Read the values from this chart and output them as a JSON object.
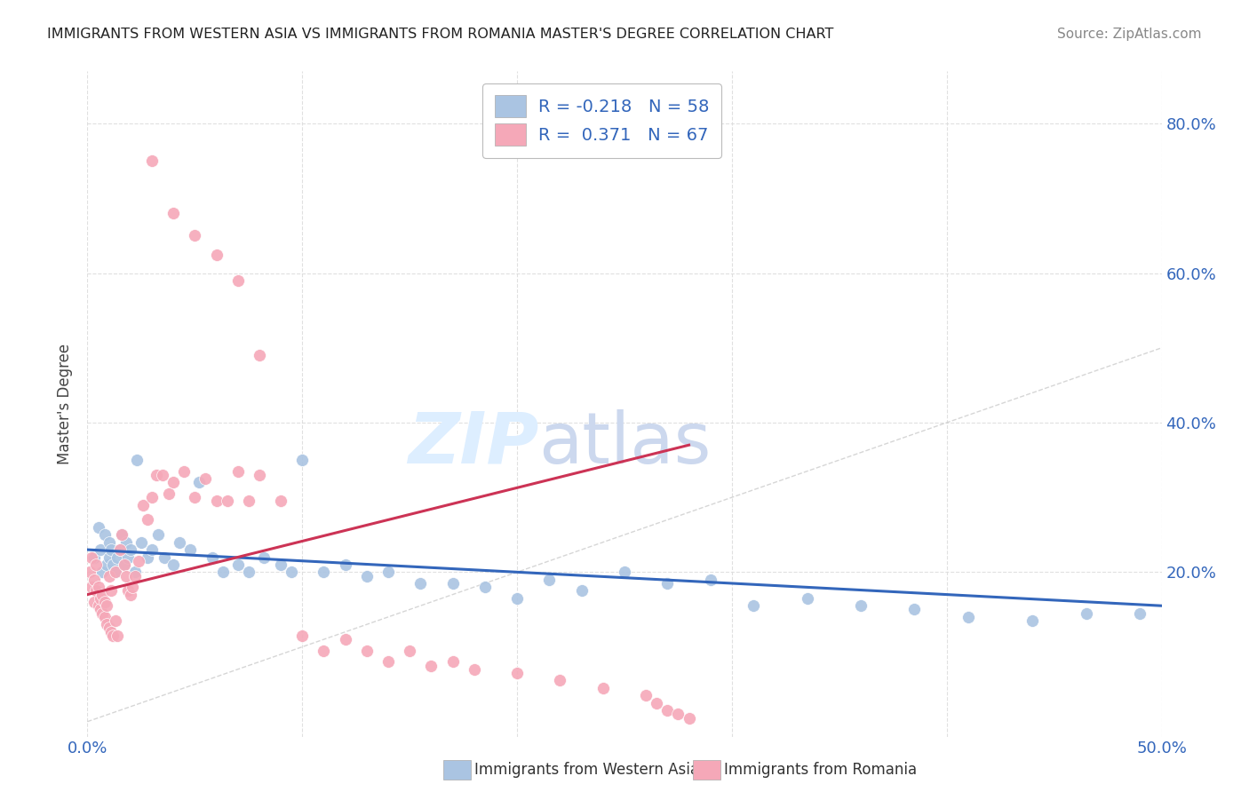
{
  "title": "IMMIGRANTS FROM WESTERN ASIA VS IMMIGRANTS FROM ROMANIA MASTER'S DEGREE CORRELATION CHART",
  "source": "Source: ZipAtlas.com",
  "ylabel": "Master's Degree",
  "yticks_labels": [
    "20.0%",
    "40.0%",
    "60.0%",
    "80.0%"
  ],
  "ytick_vals": [
    0.2,
    0.4,
    0.6,
    0.8
  ],
  "xlim": [
    0.0,
    0.5
  ],
  "ylim": [
    -0.02,
    0.87
  ],
  "blue_color": "#aac4e2",
  "pink_color": "#f5a8b8",
  "trendline_blue_color": "#3366bb",
  "trendline_pink_color": "#cc3355",
  "diagonal_color": "#cccccc",
  "legend_text_color": "#3366bb",
  "title_color": "#222222",
  "source_color": "#888888",
  "ylabel_color": "#444444",
  "xtick_color": "#3366bb",
  "ytick_color": "#3366bb",
  "watermark_zip_color": "#ddeeff",
  "watermark_atlas_color": "#ccd8ee",
  "blue_x": [
    0.003,
    0.005,
    0.006,
    0.007,
    0.008,
    0.009,
    0.01,
    0.01,
    0.011,
    0.012,
    0.013,
    0.014,
    0.015,
    0.016,
    0.017,
    0.018,
    0.019,
    0.02,
    0.022,
    0.023,
    0.025,
    0.028,
    0.03,
    0.033,
    0.036,
    0.04,
    0.043,
    0.048,
    0.052,
    0.058,
    0.063,
    0.07,
    0.075,
    0.082,
    0.09,
    0.095,
    0.1,
    0.11,
    0.12,
    0.13,
    0.14,
    0.155,
    0.17,
    0.185,
    0.2,
    0.215,
    0.23,
    0.25,
    0.27,
    0.29,
    0.31,
    0.335,
    0.36,
    0.385,
    0.41,
    0.44,
    0.465,
    0.49
  ],
  "blue_y": [
    0.22,
    0.26,
    0.23,
    0.2,
    0.25,
    0.21,
    0.24,
    0.22,
    0.23,
    0.21,
    0.2,
    0.22,
    0.23,
    0.25,
    0.21,
    0.24,
    0.22,
    0.23,
    0.2,
    0.35,
    0.24,
    0.22,
    0.23,
    0.25,
    0.22,
    0.21,
    0.24,
    0.23,
    0.32,
    0.22,
    0.2,
    0.21,
    0.2,
    0.22,
    0.21,
    0.2,
    0.35,
    0.2,
    0.21,
    0.195,
    0.2,
    0.185,
    0.185,
    0.18,
    0.165,
    0.19,
    0.175,
    0.2,
    0.185,
    0.19,
    0.155,
    0.165,
    0.155,
    0.15,
    0.14,
    0.135,
    0.145,
    0.145
  ],
  "pink_x": [
    0.001,
    0.002,
    0.002,
    0.003,
    0.003,
    0.004,
    0.004,
    0.005,
    0.005,
    0.006,
    0.006,
    0.007,
    0.007,
    0.008,
    0.008,
    0.009,
    0.009,
    0.01,
    0.01,
    0.011,
    0.011,
    0.012,
    0.013,
    0.013,
    0.014,
    0.015,
    0.016,
    0.017,
    0.018,
    0.019,
    0.02,
    0.021,
    0.022,
    0.024,
    0.026,
    0.028,
    0.03,
    0.032,
    0.035,
    0.038,
    0.04,
    0.045,
    0.05,
    0.055,
    0.06,
    0.065,
    0.07,
    0.075,
    0.08,
    0.09,
    0.1,
    0.11,
    0.12,
    0.13,
    0.14,
    0.15,
    0.16,
    0.17,
    0.18,
    0.2,
    0.22,
    0.24,
    0.26,
    0.265,
    0.27,
    0.275,
    0.28
  ],
  "pink_y": [
    0.2,
    0.18,
    0.22,
    0.16,
    0.19,
    0.175,
    0.21,
    0.155,
    0.18,
    0.15,
    0.165,
    0.145,
    0.17,
    0.14,
    0.16,
    0.13,
    0.155,
    0.125,
    0.195,
    0.12,
    0.175,
    0.115,
    0.135,
    0.2,
    0.115,
    0.23,
    0.25,
    0.21,
    0.195,
    0.175,
    0.17,
    0.18,
    0.195,
    0.215,
    0.29,
    0.27,
    0.3,
    0.33,
    0.33,
    0.305,
    0.32,
    0.335,
    0.3,
    0.325,
    0.295,
    0.295,
    0.335,
    0.295,
    0.33,
    0.295,
    0.115,
    0.095,
    0.11,
    0.095,
    0.08,
    0.095,
    0.075,
    0.08,
    0.07,
    0.065,
    0.055,
    0.045,
    0.035,
    0.025,
    0.015,
    0.01,
    0.005
  ],
  "pink_outliers_x": [
    0.03,
    0.04,
    0.05,
    0.06,
    0.07,
    0.08
  ],
  "pink_outliers_y": [
    0.75,
    0.68,
    0.65,
    0.625,
    0.59,
    0.49
  ],
  "blue_trend_x": [
    0.0,
    0.5
  ],
  "blue_trend_y": [
    0.23,
    0.155
  ],
  "pink_trend_x": [
    0.0,
    0.28
  ],
  "pink_trend_y": [
    0.17,
    0.37
  ]
}
